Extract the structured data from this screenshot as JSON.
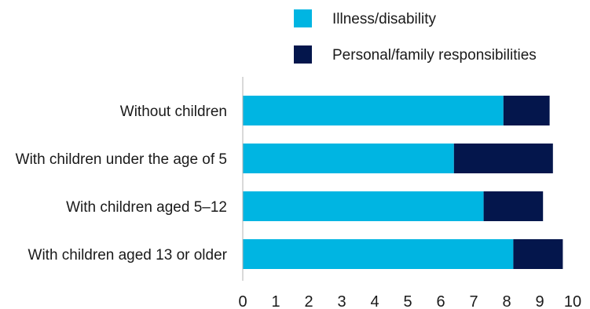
{
  "chart_data": {
    "type": "bar",
    "orientation": "horizontal",
    "stacked": true,
    "categories": [
      "Without children",
      "With children under the age of 5",
      "With children aged 5–12",
      "With children aged 13 or older"
    ],
    "series": [
      {
        "name": "Illness/disability",
        "color": "#00b5e2",
        "values": [
          7.9,
          6.4,
          7.3,
          8.2
        ]
      },
      {
        "name": "Personal/family responsibilities",
        "color": "#04164c",
        "values": [
          1.4,
          3.0,
          1.8,
          1.5
        ]
      }
    ],
    "xlim": [
      0,
      10
    ],
    "xticks": [
      "0",
      "1",
      "2",
      "3",
      "4",
      "5",
      "6",
      "7",
      "8",
      "9",
      "10"
    ],
    "title": "",
    "xlabel": "",
    "ylabel": "",
    "grid": false,
    "legend_position": "top"
  }
}
